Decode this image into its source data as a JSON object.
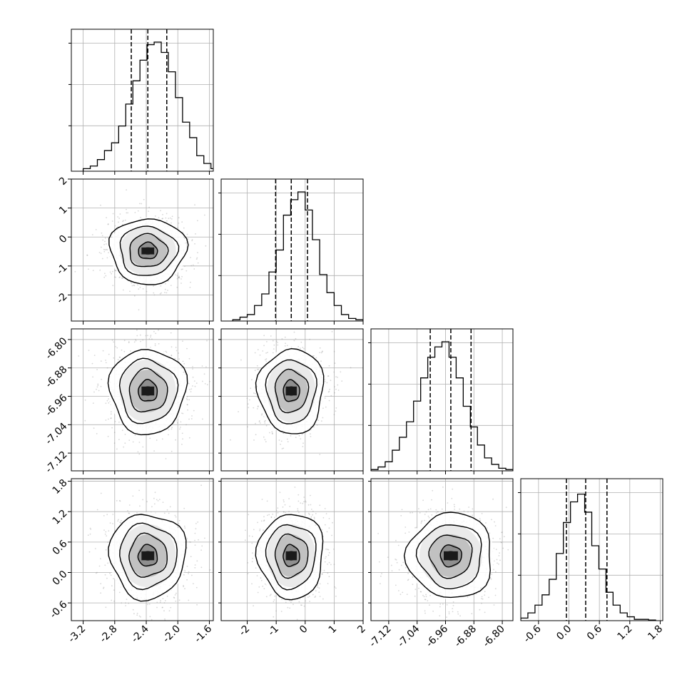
{
  "chart_data": {
    "type": "corner",
    "parameters": [
      {
        "ticks": [
          "-3.2",
          "-2.8",
          "-2.4",
          "-2.0",
          "-1.6"
        ],
        "range": [
          -3.35,
          -1.55
        ],
        "quantiles": [
          -2.59,
          -2.38,
          -2.14
        ],
        "hist_x_first_edge": -3.2,
        "hist_bin_width": 0.09,
        "hist_counts": [
          0.02,
          0.04,
          0.09,
          0.16,
          0.22,
          0.35,
          0.52,
          0.7,
          0.86,
          0.98,
          1.0,
          0.92,
          0.77,
          0.57,
          0.38,
          0.26,
          0.12,
          0.06,
          0.02,
          0.01
        ]
      },
      {
        "ticks": [
          "-2",
          "-1",
          "0",
          "1",
          "2"
        ],
        "range": [
          -2.9,
          2.0
        ],
        "quantiles": [
          -1.02,
          -0.48,
          0.08
        ],
        "hist_x_first_edge": -2.5,
        "hist_bin_width": 0.25,
        "hist_counts": [
          0.01,
          0.03,
          0.05,
          0.12,
          0.21,
          0.38,
          0.55,
          0.82,
          0.94,
          1.0,
          0.86,
          0.63,
          0.36,
          0.22,
          0.12,
          0.05,
          0.02,
          0.01
        ]
      },
      {
        "ticks": [
          "-7.12",
          "-7.04",
          "-6.96",
          "-6.88",
          "-6.80"
        ],
        "range": [
          -7.17,
          -6.77
        ],
        "quantiles": [
          -7.003,
          -6.945,
          -6.888
        ],
        "hist_x_first_edge": -7.17,
        "hist_bin_width": 0.02,
        "hist_counts": [
          0.01,
          0.03,
          0.07,
          0.16,
          0.26,
          0.38,
          0.54,
          0.72,
          0.88,
          0.96,
          1.0,
          0.88,
          0.72,
          0.5,
          0.34,
          0.2,
          0.1,
          0.05,
          0.02,
          0.01
        ]
      },
      {
        "ticks": [
          "-0.6",
          "0.0",
          "0.6",
          "1.2",
          "1.8"
        ],
        "range": [
          -0.95,
          1.85
        ],
        "quantiles": [
          -0.05,
          0.33,
          0.75
        ],
        "hist_x_first_edge": -0.95,
        "hist_bin_width": 0.14,
        "hist_counts": [
          0.02,
          0.06,
          0.12,
          0.2,
          0.32,
          0.52,
          0.76,
          0.92,
          0.98,
          0.84,
          0.58,
          0.4,
          0.22,
          0.12,
          0.06,
          0.03,
          0.01,
          0.01,
          0.005
        ]
      }
    ],
    "centers": [
      -2.38,
      -0.48,
      -6.945,
      0.33
    ],
    "sigmas": [
      0.23,
      0.54,
      0.057,
      0.4
    ],
    "colors": {
      "line": "#000000",
      "grid": "#b0b0b0",
      "points": "#8c8c8c"
    },
    "grid": true,
    "contour_levels_sigma": [
      0.5,
      1.0,
      1.5,
      2.0
    ]
  }
}
